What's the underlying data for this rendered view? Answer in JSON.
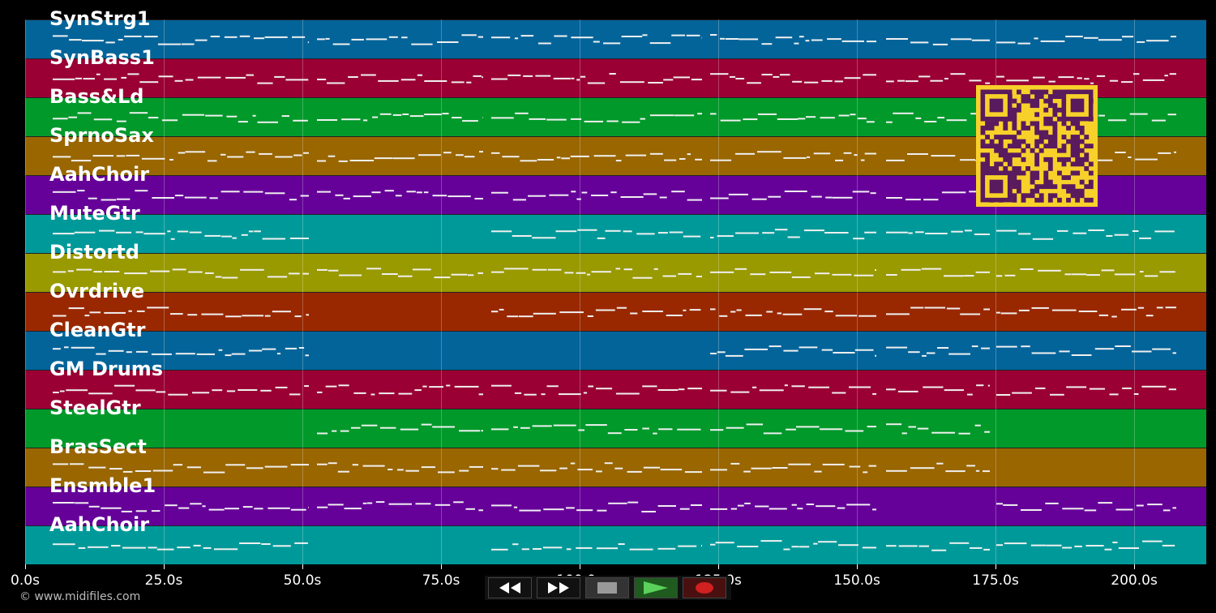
{
  "tracks": [
    {
      "name": "SynStrg1",
      "color": "#03649a"
    },
    {
      "name": "SynBass1",
      "color": "#9a0034"
    },
    {
      "name": "Bass&Ld",
      "color": "#00992a"
    },
    {
      "name": "SprnoSax",
      "color": "#996600"
    },
    {
      "name": "AahChoir",
      "color": "#650099"
    },
    {
      "name": "MuteGtr",
      "color": "#009999"
    },
    {
      "name": "Distortd",
      "color": "#999900"
    },
    {
      "name": "Ovrdrive",
      "color": "#992800"
    },
    {
      "name": "CleanGtr",
      "color": "#03649a"
    },
    {
      "name": "GM Drums",
      "color": "#9a0034"
    },
    {
      "name": "SteelGtr",
      "color": "#00992a"
    },
    {
      "name": "BrasSect",
      "color": "#996600"
    },
    {
      "name": "Ensmble1",
      "color": "#650099"
    },
    {
      "name": "AahChoir",
      "color": "#009999"
    }
  ],
  "timeline": {
    "max_seconds": 213,
    "ticks": [
      "0.0s",
      "25.0s",
      "50.0s",
      "75.0s",
      "100.0s",
      "125.0s",
      "150.0s",
      "175.0s",
      "200.0s"
    ],
    "tick_values": [
      0,
      25,
      50,
      75,
      100,
      125,
      150,
      175,
      200
    ]
  },
  "footer": {
    "copyright": "© www.midifiles.com"
  },
  "transport": {
    "buttons": [
      "rewind-icon",
      "fast-forward-icon",
      "stop-icon",
      "play-icon",
      "record-icon"
    ]
  },
  "qr": {
    "color_bg": "#f7d12a",
    "color_fg": "#5a1a5e"
  }
}
